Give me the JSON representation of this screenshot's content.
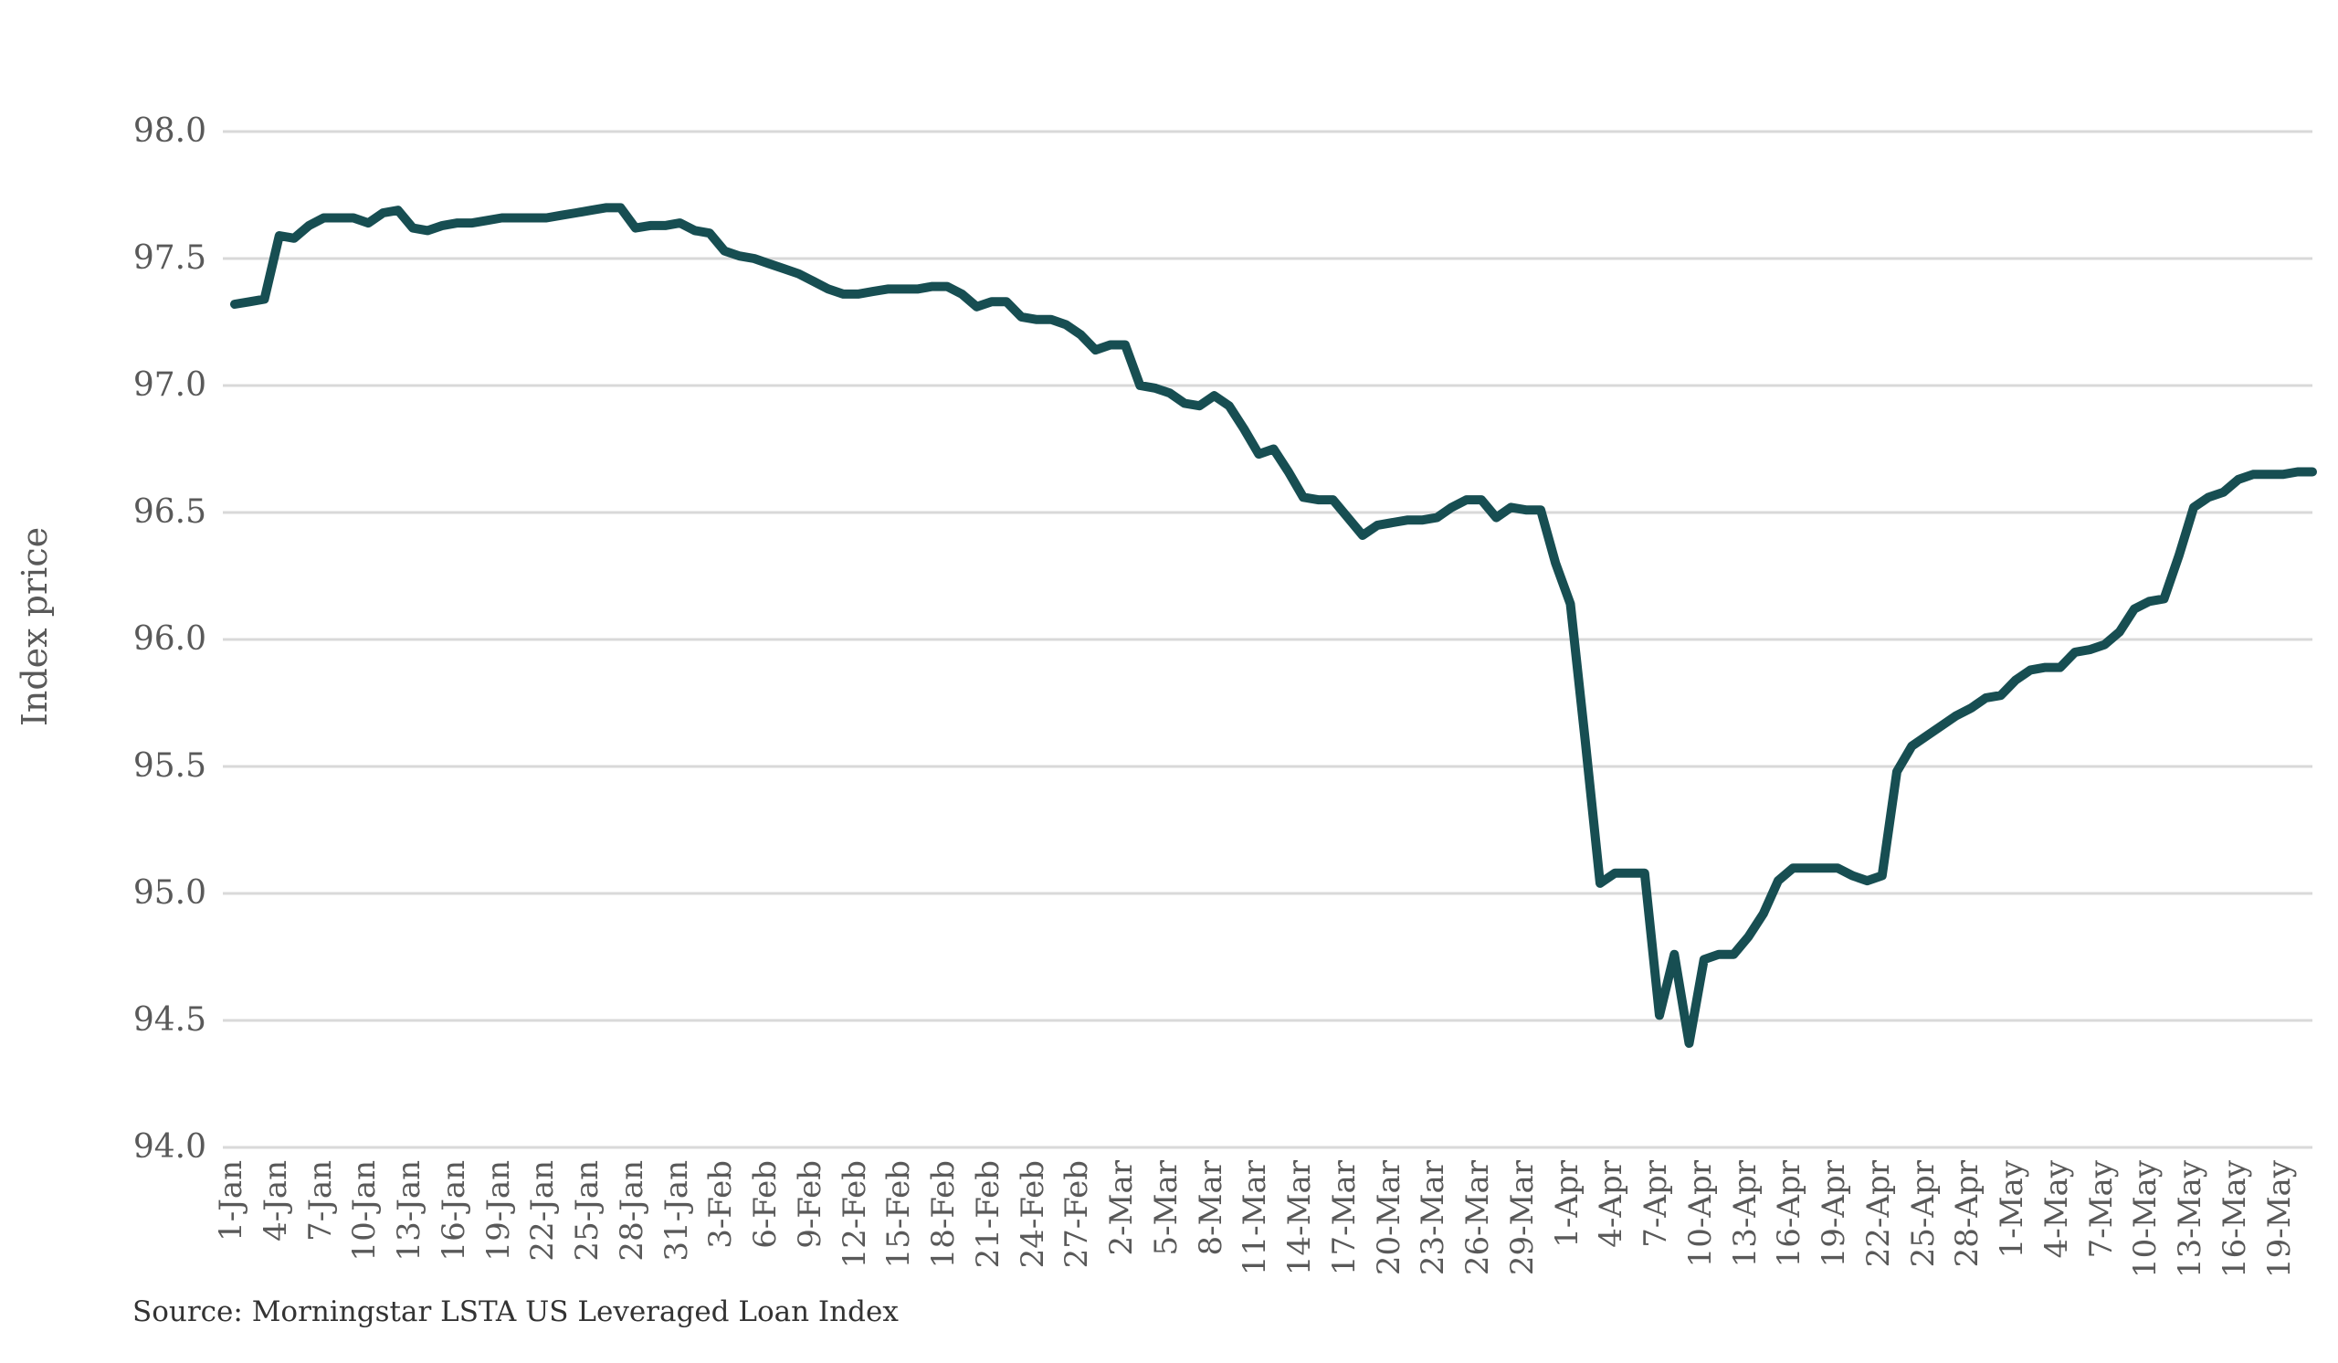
{
  "chart_data": {
    "type": "line",
    "title": "",
    "ylabel": "Index price",
    "xlabel": "",
    "source_note": "Source: Morningstar LSTA US Leveraged Loan Index",
    "ylim": [
      94.0,
      98.0
    ],
    "y_tick_labels": [
      "98.0",
      "97.5",
      "97.0",
      "96.5",
      "96.0",
      "95.5",
      "95.0",
      "94.5",
      "94.0"
    ],
    "grid": "horizontal",
    "legend": "none",
    "line_color": "#174e52",
    "gridline_color": "#d9d9d9",
    "label_color": "#595959",
    "background_color": "#ffffff",
    "x_tick_every_n_points": 3,
    "x_tick_labels": [
      "1-Jan",
      "4-Jan",
      "7-Jan",
      "10-Jan",
      "13-Jan",
      "16-Jan",
      "19-Jan",
      "22-Jan",
      "25-Jan",
      "28-Jan",
      "31-Jan",
      "3-Feb",
      "6-Feb",
      "9-Feb",
      "12-Feb",
      "15-Feb",
      "18-Feb",
      "21-Feb",
      "24-Feb",
      "27-Feb",
      "2-Mar",
      "5-Mar",
      "8-Mar",
      "11-Mar",
      "14-Mar",
      "17-Mar",
      "20-Mar",
      "23-Mar",
      "26-Mar",
      "29-Mar",
      "1-Apr",
      "4-Apr",
      "7-Apr",
      "10-Apr",
      "13-Apr",
      "16-Apr",
      "19-Apr",
      "22-Apr",
      "25-Apr",
      "28-Apr",
      "1-May",
      "4-May",
      "7-May",
      "10-May",
      "13-May",
      "16-May",
      "19-May"
    ],
    "series": [
      {
        "name": "Morningstar LSTA US Leveraged Loan Index price",
        "values": [
          97.32,
          97.33,
          97.34,
          97.59,
          97.58,
          97.63,
          97.66,
          97.66,
          97.66,
          97.64,
          97.68,
          97.69,
          97.62,
          97.61,
          97.63,
          97.64,
          97.64,
          97.65,
          97.66,
          97.66,
          97.66,
          97.66,
          97.67,
          97.68,
          97.69,
          97.7,
          97.7,
          97.62,
          97.63,
          97.63,
          97.64,
          97.61,
          97.6,
          97.53,
          97.51,
          97.5,
          97.48,
          97.46,
          97.44,
          97.41,
          97.38,
          97.36,
          97.36,
          97.37,
          97.38,
          97.38,
          97.38,
          97.39,
          97.39,
          97.36,
          97.31,
          97.33,
          97.33,
          97.27,
          97.26,
          97.26,
          97.24,
          97.2,
          97.14,
          97.16,
          97.16,
          97.0,
          96.99,
          96.97,
          96.93,
          96.92,
          96.96,
          96.92,
          96.83,
          96.73,
          96.75,
          96.66,
          96.56,
          96.55,
          96.55,
          96.48,
          96.41,
          96.45,
          96.46,
          96.47,
          96.47,
          96.48,
          96.52,
          96.55,
          96.55,
          96.48,
          96.52,
          96.51,
          96.51,
          96.3,
          96.14,
          95.6,
          95.04,
          95.08,
          95.08,
          95.08,
          94.52,
          94.76,
          94.41,
          94.74,
          94.76,
          94.76,
          94.83,
          94.92,
          95.05,
          95.1,
          95.1,
          95.1,
          95.1,
          95.07,
          95.05,
          95.07,
          95.48,
          95.58,
          95.62,
          95.66,
          95.7,
          95.73,
          95.77,
          95.78,
          95.84,
          95.88,
          95.89,
          95.89,
          95.95,
          95.96,
          95.98,
          96.03,
          96.12,
          96.15,
          96.16,
          96.33,
          96.52,
          96.56,
          96.58,
          96.63,
          96.65,
          96.65,
          96.65,
          96.66,
          96.66
        ]
      }
    ]
  }
}
